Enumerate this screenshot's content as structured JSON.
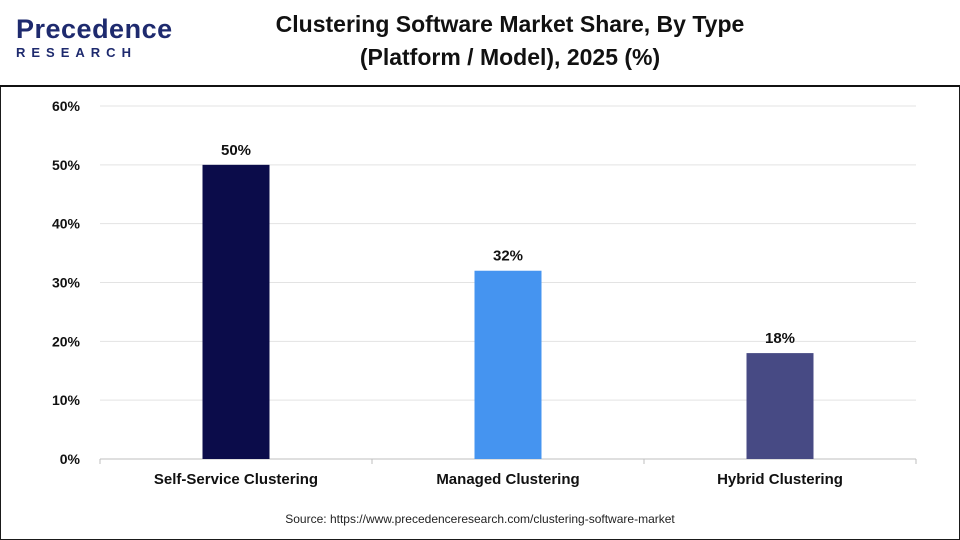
{
  "header": {
    "logo_top": "Precedence",
    "logo_bottom": "RESEARCH",
    "title_line1": "Clustering Software Market Share, By Type",
    "title_line2": "(Platform / Model), 2025 (%)"
  },
  "source": "Source: https://www.precedenceresearch.com/clustering-software-market",
  "colors": {
    "self_service": "#0b0c4a",
    "managed": "#4594f0",
    "hybrid": "#474a84",
    "brand": "#1e2a6e"
  },
  "chart_data": {
    "type": "bar",
    "categories": [
      "Self-Service Clustering",
      "Managed Clustering",
      "Hybrid Clustering"
    ],
    "values": [
      50,
      32,
      18
    ],
    "data_labels": [
      "50%",
      "32%",
      "18%"
    ],
    "bar_colors": [
      "#0b0c4a",
      "#4594f0",
      "#474a84"
    ],
    "ylim": [
      0,
      60
    ],
    "yticks": [
      0,
      10,
      20,
      30,
      40,
      50,
      60
    ],
    "ytick_labels": [
      "0%",
      "10%",
      "20%",
      "30%",
      "40%",
      "50%",
      "60%"
    ],
    "grid": true,
    "legend": "none"
  }
}
